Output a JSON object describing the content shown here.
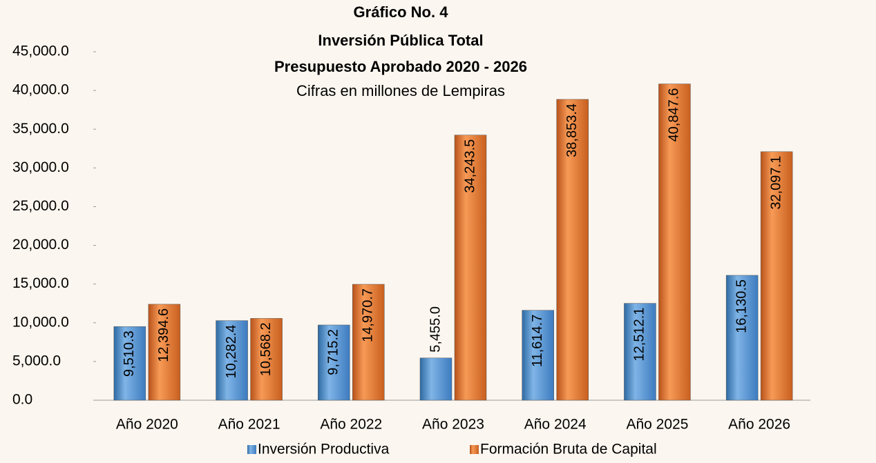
{
  "chart_data": {
    "type": "bar",
    "title": [
      "Gráfico No. 4",
      "Inversión Pública Total",
      "Presupuesto Aprobado 2020 - 2026"
    ],
    "subtitle": "Cifras en millones de Lempiras",
    "categories": [
      "Año 2020",
      "Año 2021",
      "Año 2022",
      "Año 2023",
      "Año 2024",
      "Año 2025",
      "Año 2026"
    ],
    "series": [
      {
        "name": "Inversión Productiva",
        "color": "#5b9bd5",
        "values": [
          9510.3,
          10282.4,
          9715.2,
          5455.0,
          11614.7,
          12512.1,
          16130.5
        ],
        "value_labels": [
          "9,510.3",
          "10,282.4",
          "9,715.2",
          "5,455.0",
          "11,614.7",
          "12,512.1",
          "16,130.5"
        ]
      },
      {
        "name": "Formación Bruta de Capital",
        "color": "#ed7d31",
        "values": [
          12394.6,
          10568.2,
          14970.7,
          34243.5,
          38853.4,
          40847.6,
          32097.1
        ],
        "value_labels": [
          "12,394.6",
          "10,568.2",
          "14,970.7",
          "34,243.5",
          "38,853.4",
          "40,847.6",
          "32,097.1"
        ]
      }
    ],
    "ylim": [
      0,
      45000
    ],
    "yticks": [
      {
        "value": 0,
        "label": "0.0"
      },
      {
        "value": 5000,
        "label": "5,000.0"
      },
      {
        "value": 10000,
        "label": "10,000.0"
      },
      {
        "value": 15000,
        "label": "15,000.0"
      },
      {
        "value": 20000,
        "label": "20,000.0"
      },
      {
        "value": 25000,
        "label": "25,000.0"
      },
      {
        "value": 30000,
        "label": "30,000.0"
      },
      {
        "value": 35000,
        "label": "35,000.0"
      },
      {
        "value": 40000,
        "label": "40,000.0"
      },
      {
        "value": 45000,
        "label": "45,000.0"
      }
    ],
    "legend": "bottom"
  }
}
